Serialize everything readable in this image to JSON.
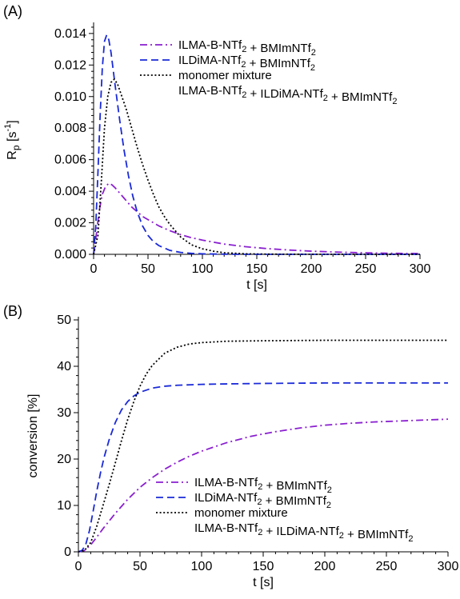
{
  "chart_data": [
    {
      "type": "line",
      "panel_label": "(A)",
      "xlabel": "t [s]",
      "ylabel_main": "R",
      "ylabel_sub": "p",
      "ylabel_unit_open": " [s",
      "ylabel_unit_sup": "-1",
      "ylabel_unit_close": "]",
      "xlim": [
        0,
        300
      ],
      "ylim": [
        0,
        0.0145
      ],
      "xticks": [
        0,
        50,
        100,
        150,
        200,
        250,
        300
      ],
      "xtick_labels": [
        "0",
        "50",
        "100",
        "150",
        "200",
        "250",
        "300"
      ],
      "yticks": [
        0,
        0.002,
        0.004,
        0.006,
        0.008,
        0.01,
        0.012,
        0.014
      ],
      "ytick_labels": [
        "0.000",
        "0.002",
        "0.004",
        "0.006",
        "0.008",
        "0.010",
        "0.012",
        "0.014"
      ],
      "legend_position": "top-right",
      "series": [
        {
          "name": "ILMA-B-NTf2 + BMImNTf2",
          "color": "#8a1fd0",
          "dash": "dashdot",
          "x": [
            0,
            3,
            5,
            8,
            11,
            14,
            17,
            20,
            25,
            30,
            35,
            40,
            45,
            50,
            60,
            70,
            80,
            90,
            100,
            120,
            140,
            160,
            180,
            200,
            220,
            240,
            260,
            280,
            300
          ],
          "y": [
            0,
            0.0015,
            0.0027,
            0.0038,
            0.0043,
            0.0045,
            0.0044,
            0.0042,
            0.0038,
            0.0034,
            0.003,
            0.0027,
            0.0024,
            0.0022,
            0.0018,
            0.0015,
            0.00125,
            0.00105,
            0.0009,
            0.00065,
            0.00048,
            0.00036,
            0.00027,
            0.0002,
            0.00015,
            0.00011,
            8e-05,
            6e-05,
            5e-05
          ]
        },
        {
          "name": "ILDiMA-NTf2 + BMImNTf2",
          "color": "#1a2ad8",
          "dash": "dashed",
          "x": [
            0,
            2,
            4,
            6,
            8,
            10,
            12,
            14,
            16,
            18,
            20,
            24,
            28,
            32,
            36,
            40,
            45,
            50,
            55,
            60,
            70,
            80,
            90,
            100,
            120,
            140,
            160,
            200,
            250,
            300
          ],
          "y": [
            0,
            0.0018,
            0.0052,
            0.0088,
            0.0118,
            0.0135,
            0.0139,
            0.0136,
            0.0128,
            0.0117,
            0.0106,
            0.0085,
            0.0066,
            0.005,
            0.0037,
            0.0027,
            0.0018,
            0.0012,
            0.0008,
            0.00055,
            0.00025,
            0.00012,
            6e-05,
            3e-05,
            1e-05,
            0,
            0,
            0,
            0,
            0
          ]
        },
        {
          "name": "monomer mixture",
          "name_line2": "ILMA-B-NTf2 + ILDiMA-NTf2 + BMImNTf2",
          "color": "#000000",
          "dash": "dotted",
          "x": [
            0,
            4,
            7,
            10,
            13,
            16,
            19,
            22,
            25,
            30,
            35,
            40,
            45,
            50,
            55,
            60,
            65,
            70,
            80,
            90,
            100,
            110,
            120,
            140,
            160,
            200,
            250,
            300
          ],
          "y": [
            0,
            0.0012,
            0.0045,
            0.008,
            0.01,
            0.0109,
            0.0111,
            0.0108,
            0.0102,
            0.0092,
            0.008,
            0.0068,
            0.0057,
            0.0047,
            0.0038,
            0.003,
            0.0024,
            0.0019,
            0.0011,
            0.0006,
            0.00035,
            0.0002,
            0.0001,
            3e-05,
            1e-05,
            0,
            0,
            0
          ]
        }
      ]
    },
    {
      "type": "line",
      "panel_label": "(B)",
      "xlabel": "t [s]",
      "ylabel": "conversion [%]",
      "xlim": [
        0,
        300
      ],
      "ylim": [
        0,
        50
      ],
      "xticks": [
        0,
        50,
        100,
        150,
        200,
        250,
        300
      ],
      "xtick_labels": [
        "0",
        "50",
        "100",
        "150",
        "200",
        "250",
        "300"
      ],
      "yticks": [
        0,
        10,
        20,
        30,
        40,
        50
      ],
      "ytick_labels": [
        "0",
        "10",
        "20",
        "30",
        "40",
        "50"
      ],
      "legend_position": "bottom-right",
      "series": [
        {
          "name": "ILMA-B-NTf2 + BMImNTf2",
          "color": "#8a1fd0",
          "dash": "dashdot",
          "x": [
            0,
            5,
            10,
            15,
            20,
            30,
            40,
            50,
            60,
            70,
            80,
            90,
            100,
            120,
            140,
            160,
            180,
            200,
            220,
            240,
            260,
            280,
            300
          ],
          "y": [
            0,
            0.3,
            1.5,
            3.2,
            5.0,
            8.3,
            11.3,
            13.9,
            16.0,
            17.8,
            19.3,
            20.6,
            21.7,
            23.5,
            24.9,
            25.9,
            26.7,
            27.3,
            27.7,
            28.0,
            28.2,
            28.4,
            28.6
          ]
        },
        {
          "name": "ILDiMA-NTf2 + BMImNTf2",
          "color": "#1a2ad8",
          "dash": "dashed",
          "x": [
            0,
            3,
            6,
            9,
            12,
            15,
            18,
            21,
            25,
            30,
            35,
            40,
            45,
            50,
            60,
            70,
            80,
            100,
            120,
            150,
            200,
            250,
            300
          ],
          "y": [
            0,
            0.3,
            1.6,
            4.6,
            8.8,
            13.2,
            17.1,
            20.5,
            24.2,
            27.9,
            30.6,
            32.4,
            33.6,
            34.4,
            35.3,
            35.7,
            35.9,
            36.1,
            36.2,
            36.3,
            36.4,
            36.4,
            36.4
          ]
        },
        {
          "name": "monomer mixture",
          "name_line2": "ILMA-B-NTf2 + ILDiMA-NTf2 + BMImNTf2",
          "color": "#000000",
          "dash": "dotted",
          "x": [
            0,
            5,
            10,
            15,
            20,
            25,
            30,
            35,
            40,
            45,
            50,
            55,
            60,
            70,
            80,
            90,
            100,
            120,
            150,
            200,
            250,
            300
          ],
          "y": [
            0,
            0.3,
            2.0,
            5.6,
            10.0,
            14.5,
            19.2,
            24.0,
            28.5,
            32.4,
            35.7,
            38.3,
            40.2,
            42.8,
            44.1,
            44.8,
            45.1,
            45.4,
            45.5,
            45.6,
            45.6,
            45.6
          ]
        }
      ]
    }
  ]
}
